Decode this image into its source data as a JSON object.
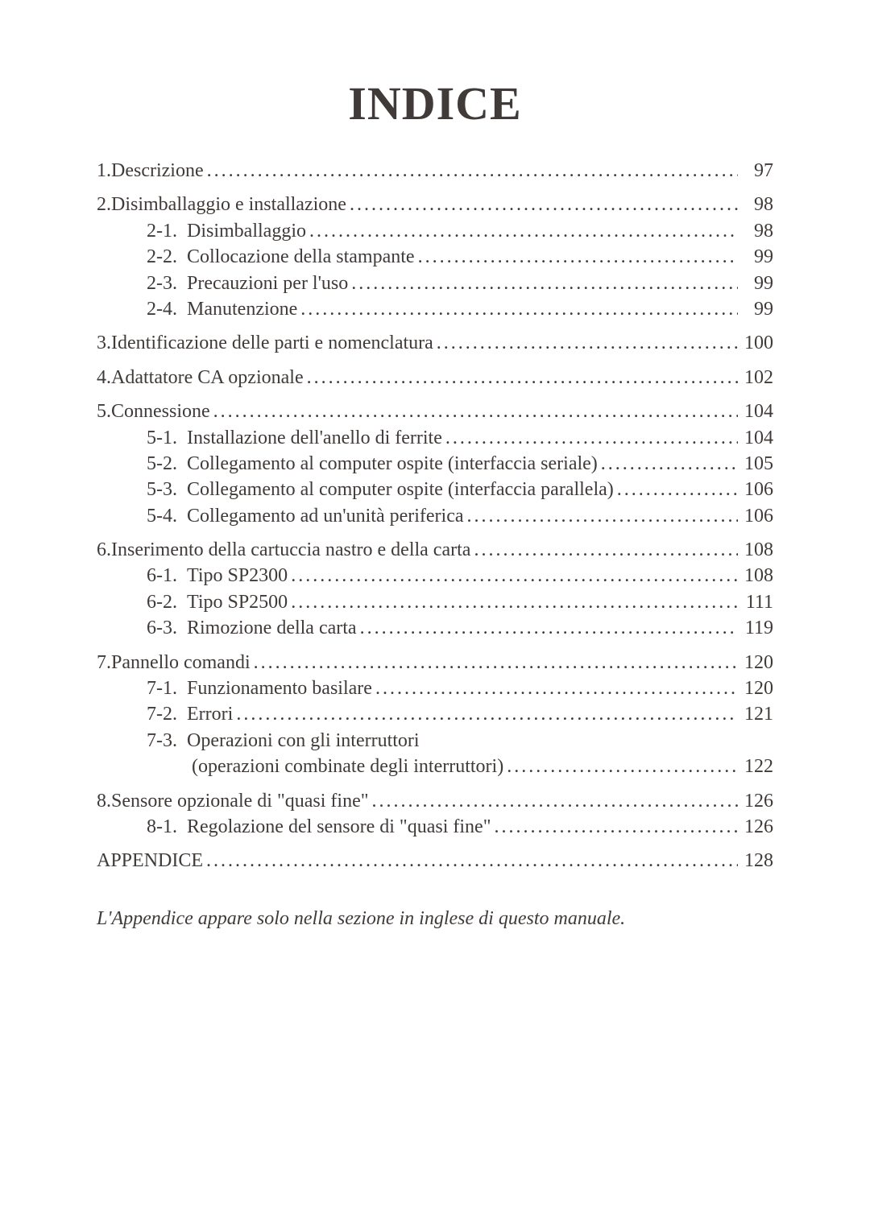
{
  "colors": {
    "text": "#403b39",
    "background": "#ffffff"
  },
  "typography": {
    "title_fontsize": 58,
    "body_fontsize": 24,
    "font_family": "Georgia, Times New Roman, serif"
  },
  "title": "INDICE",
  "contents": {
    "g1": {
      "r1_num": "1. ",
      "r1_text": "Descrizione",
      "r1_page": "97"
    },
    "g2": {
      "r1_num": "2. ",
      "r1_text": "Disimballaggio e installazione",
      "r1_page": "98",
      "r2_num": "2-1.",
      "r2_text": "Disimballaggio",
      "r2_page": "98",
      "r3_num": "2-2.",
      "r3_text": "Collocazione della stampante",
      "r3_page": "99",
      "r4_num": "2-3.",
      "r4_text": "Precauzioni per l'uso",
      "r4_page": "99",
      "r5_num": "2-4.",
      "r5_text": "Manutenzione",
      "r5_page": "99"
    },
    "g3": {
      "r1_num": "3. ",
      "r1_text": "Identificazione delle parti e nomenclatura",
      "r1_page": "100"
    },
    "g4": {
      "r1_num": "4. ",
      "r1_text": "Adattatore CA opzionale",
      "r1_page": "102"
    },
    "g5": {
      "r1_num": "5. ",
      "r1_text": "Connessione",
      "r1_page": "104",
      "r2_num": "5-1.",
      "r2_text": "Installazione dell'anello di ferrite",
      "r2_page": "104",
      "r3_num": "5-2.",
      "r3_text": "Collegamento al computer ospite (interfaccia seriale)",
      "r3_page": "105",
      "r4_num": "5-3.",
      "r4_text": "Collegamento al computer ospite (interfaccia parallela)",
      "r4_page": "106",
      "r5_num": "5-4.",
      "r5_text": "Collegamento ad un'unità periferica",
      "r5_page": "106"
    },
    "g6": {
      "r1_num": "6. ",
      "r1_text": "Inserimento della cartuccia nastro e della carta",
      "r1_page": "108",
      "r2_num": "6-1.",
      "r2_text": "Tipo SP2300",
      "r2_page": "108",
      "r3_num": "6-2.",
      "r3_text": "Tipo SP2500",
      "r3_page": "111",
      "r4_num": "6-3.",
      "r4_text": "Rimozione della carta",
      "r4_page": "119"
    },
    "g7": {
      "r1_num": "7. ",
      "r1_text": "Pannello comandi",
      "r1_page": "120",
      "r2_num": "7-1.",
      "r2_text": "Funzionamento basilare",
      "r2_page": "120",
      "r3_num": "7-2.",
      "r3_text": "Errori",
      "r3_page": "121",
      "r4_num": "7-3.",
      "r4_text": "Operazioni con gli interruttori",
      "r5_text": "(operazioni combinate degli interruttori)",
      "r5_page": "122"
    },
    "g8": {
      "r1_num": "8. ",
      "r1_text": "Sensore opzionale di \"quasi fine\"",
      "r1_page": "126",
      "r2_num": "8-1.",
      "r2_text": "Regolazione del sensore di \"quasi fine\"",
      "r2_page": "126"
    },
    "g9": {
      "r1_text": "APPENDICE",
      "r1_page": "128"
    }
  },
  "footnote": "L'Appendice appare solo nella sezione in inglese di questo manuale."
}
